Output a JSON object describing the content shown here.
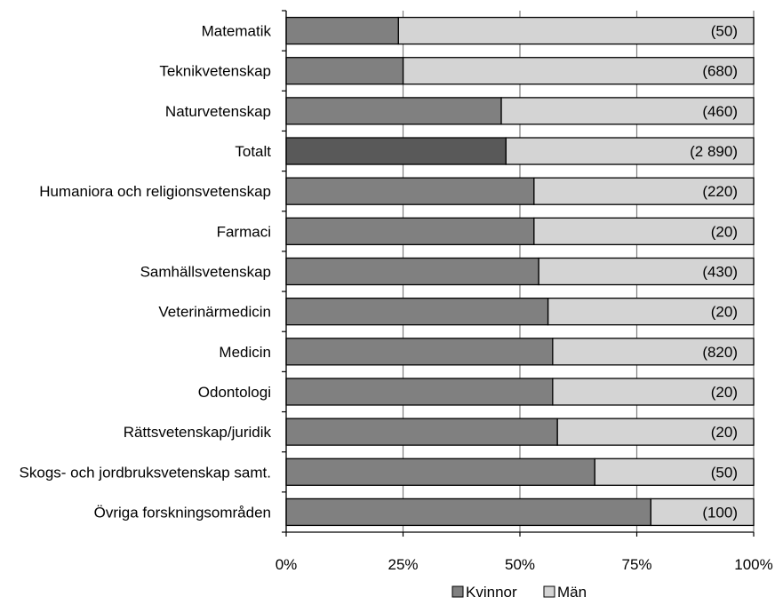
{
  "chart_data": {
    "type": "bar",
    "orientation": "horizontal",
    "stacked": true,
    "percent": true,
    "categories": [
      "Matematik",
      "Teknikvetenskap",
      "Naturvetenskap",
      "Totalt",
      "Humaniora och religionsvetenskap",
      "Farmaci",
      "Samhällsvetenskap",
      "Veterinärmedicin",
      "Medicin",
      "Odontologi",
      "Rättsvetenskap/juridik",
      "Skogs- och jordbruksvetenskap samt.",
      "Övriga forskningsområden"
    ],
    "series": [
      {
        "name": "Kvinnor",
        "values": [
          24,
          25,
          46,
          47,
          53,
          53,
          54,
          56,
          57,
          57,
          58,
          66,
          78
        ],
        "color": "#808080",
        "highlight_color": "#595959",
        "highlight_category": "Totalt"
      },
      {
        "name": "Män",
        "values": [
          76,
          75,
          54,
          53,
          47,
          47,
          46,
          44,
          43,
          43,
          42,
          34,
          22
        ],
        "color": "#d4d4d4"
      }
    ],
    "data_labels": [
      "(50)",
      "(680)",
      "(460)",
      "(2 890)",
      "(220)",
      "(20)",
      "(430)",
      "(20)",
      "(820)",
      "(20)",
      "(20)",
      "(50)",
      "(100)"
    ],
    "x_ticks": [
      "0%",
      "25%",
      "50%",
      "75%",
      "100%"
    ],
    "xlim": [
      0,
      100
    ],
    "grid": "vertical",
    "legend": {
      "placement": "bottom",
      "items": [
        "Kvinnor",
        "Män"
      ]
    }
  }
}
